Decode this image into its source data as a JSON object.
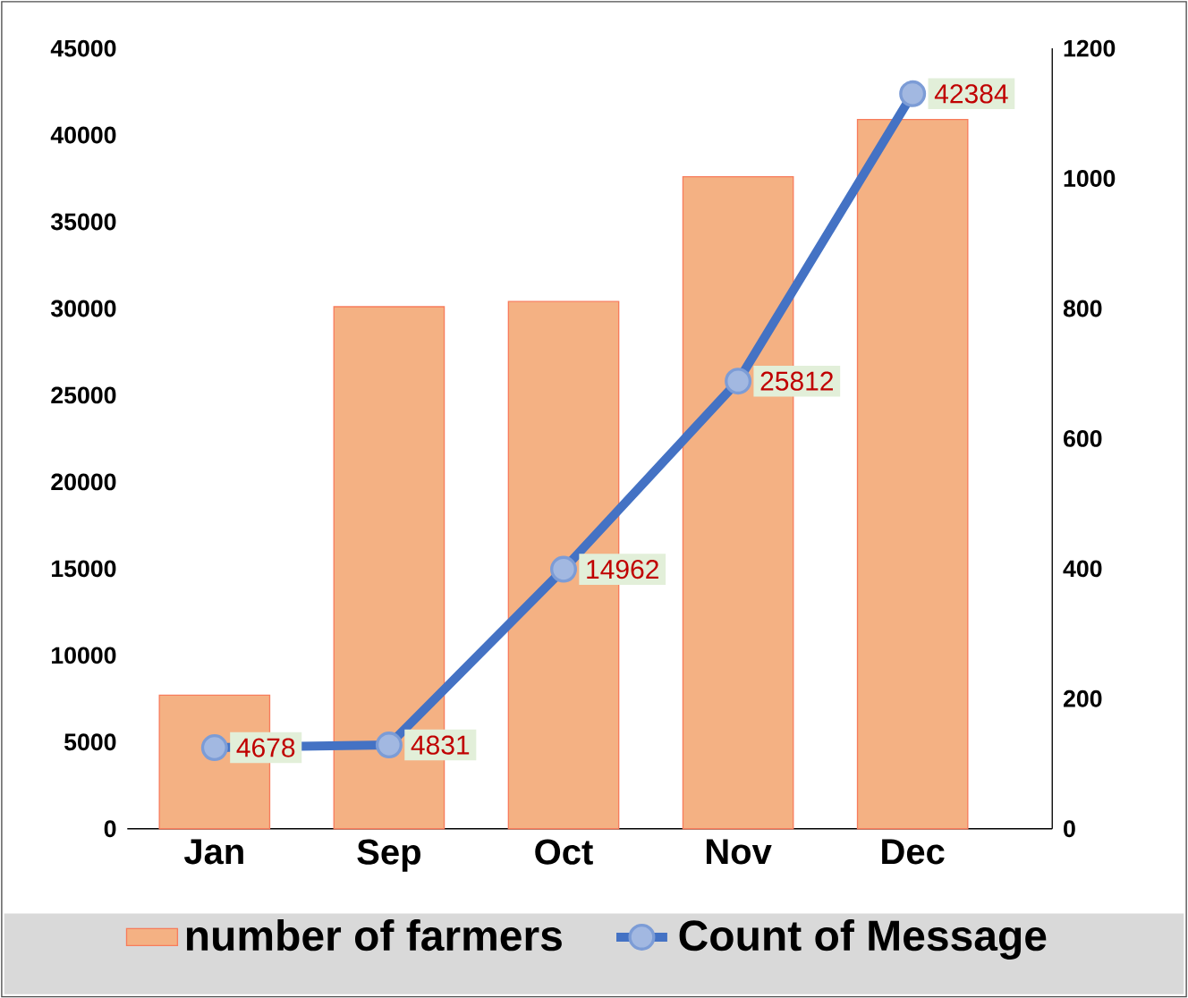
{
  "chart_data": {
    "type": "bar",
    "categories": [
      "Jan",
      "Sep",
      "Oct",
      "Nov",
      "Dec"
    ],
    "series": [
      {
        "name": "number of farmers",
        "color": "#f4b183",
        "values": [
          7700,
          30100,
          30400,
          37600,
          40900
        ]
      },
      {
        "name": "Count of Message",
        "type": "line",
        "color": "#4472c4",
        "values": [
          4678,
          4831,
          14962,
          25812,
          42384
        ],
        "value_labels": [
          "4678",
          "4831",
          "14962",
          "25812",
          "42384"
        ]
      }
    ],
    "ylim": [
      0,
      45000
    ],
    "yticks": [
      0,
      5000,
      10000,
      15000,
      20000,
      25000,
      30000,
      35000,
      40000,
      45000
    ],
    "y2lim": [
      0,
      1200
    ],
    "y2ticks": [
      0,
      200,
      400,
      600,
      800,
      1000,
      1200
    ],
    "marker": "circle",
    "legend": "bottom",
    "grid": false
  }
}
